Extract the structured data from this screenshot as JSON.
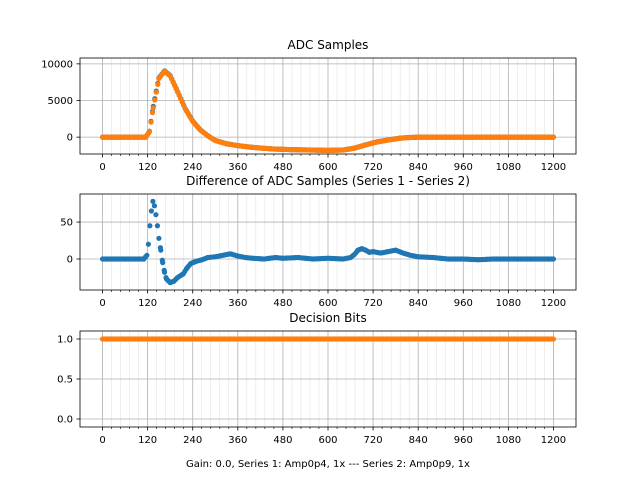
{
  "figure": {
    "xlabel": "Gain: 0.0, Series 1: Amp0p4, 1x --- Series 2: Amp0p9, 1x",
    "colors": {
      "series1": "#1f77b4",
      "series2": "#ff7f0e",
      "grid": "#b0b0b0"
    }
  },
  "chart_data": [
    {
      "type": "scatter",
      "title": "ADC Samples",
      "xlim": [
        -60,
        1260
      ],
      "ylim": [
        -2300,
        10800
      ],
      "xticks": [
        0,
        120,
        240,
        360,
        480,
        600,
        720,
        840,
        960,
        1080,
        1200
      ],
      "yticks": [
        0,
        5000,
        10000
      ],
      "ytick_labels": [
        "0",
        "5000",
        "10000"
      ],
      "grid": true,
      "series": [
        {
          "color": "#1f77b4",
          "points": [
            [
              0,
              0
            ],
            [
              100,
              0
            ],
            [
              115,
              0
            ],
            [
              125,
              800
            ],
            [
              135,
              4200
            ],
            [
              150,
              8100
            ],
            [
              165,
              9050
            ],
            [
              180,
              8400
            ],
            [
              200,
              6200
            ],
            [
              220,
              3900
            ],
            [
              240,
              2200
            ],
            [
              260,
              1000
            ],
            [
              280,
              200
            ],
            [
              300,
              -450
            ],
            [
              330,
              -900
            ],
            [
              360,
              -1150
            ],
            [
              400,
              -1400
            ],
            [
              450,
              -1600
            ],
            [
              500,
              -1700
            ],
            [
              550,
              -1750
            ],
            [
              600,
              -1800
            ],
            [
              640,
              -1750
            ],
            [
              670,
              -1500
            ],
            [
              700,
              -1050
            ],
            [
              730,
              -650
            ],
            [
              760,
              -380
            ],
            [
              790,
              -150
            ],
            [
              810,
              -60
            ],
            [
              840,
              0
            ],
            [
              900,
              0
            ],
            [
              1000,
              0
            ],
            [
              1100,
              0
            ],
            [
              1200,
              0
            ]
          ]
        },
        {
          "color": "#ff7f0e",
          "points": [
            [
              0,
              0
            ],
            [
              100,
              0
            ],
            [
              115,
              0
            ],
            [
              125,
              750
            ],
            [
              135,
              4000
            ],
            [
              150,
              8000
            ],
            [
              165,
              9000
            ],
            [
              180,
              8350
            ],
            [
              200,
              6150
            ],
            [
              220,
              3850
            ],
            [
              240,
              2150
            ],
            [
              260,
              980
            ],
            [
              280,
              190
            ],
            [
              300,
              -460
            ],
            [
              330,
              -910
            ],
            [
              360,
              -1160
            ],
            [
              400,
              -1400
            ],
            [
              450,
              -1600
            ],
            [
              500,
              -1700
            ],
            [
              550,
              -1750
            ],
            [
              600,
              -1800
            ],
            [
              640,
              -1760
            ],
            [
              670,
              -1520
            ],
            [
              700,
              -1070
            ],
            [
              730,
              -670
            ],
            [
              760,
              -400
            ],
            [
              790,
              -160
            ],
            [
              810,
              -70
            ],
            [
              840,
              0
            ],
            [
              900,
              0
            ],
            [
              1000,
              0
            ],
            [
              1100,
              0
            ],
            [
              1200,
              0
            ]
          ]
        }
      ]
    },
    {
      "type": "scatter",
      "title": "Difference of ADC Samples (Series 1 - Series 2)",
      "xlim": [
        -60,
        1260
      ],
      "ylim": [
        -42,
        88
      ],
      "xticks": [
        0,
        120,
        240,
        360,
        480,
        600,
        720,
        840,
        960,
        1080,
        1200
      ],
      "yticks": [
        0,
        50
      ],
      "ytick_labels": [
        "0",
        "50"
      ],
      "grid": true,
      "series": [
        {
          "color": "#1f77b4",
          "points": [
            [
              0,
              0
            ],
            [
              60,
              0
            ],
            [
              100,
              0
            ],
            [
              110,
              0
            ],
            [
              118,
              5
            ],
            [
              122,
              20
            ],
            [
              126,
              45
            ],
            [
              130,
              65
            ],
            [
              134,
              78
            ],
            [
              138,
              72
            ],
            [
              142,
              60
            ],
            [
              146,
              45
            ],
            [
              150,
              28
            ],
            [
              155,
              12
            ],
            [
              160,
              -5
            ],
            [
              165,
              -18
            ],
            [
              170,
              -27
            ],
            [
              180,
              -32
            ],
            [
              190,
              -30
            ],
            [
              200,
              -25
            ],
            [
              215,
              -20
            ],
            [
              225,
              -12
            ],
            [
              235,
              -6
            ],
            [
              250,
              -3
            ],
            [
              265,
              -1
            ],
            [
              280,
              2
            ],
            [
              300,
              3
            ],
            [
              320,
              5
            ],
            [
              340,
              7
            ],
            [
              360,
              4
            ],
            [
              380,
              2
            ],
            [
              400,
              1
            ],
            [
              430,
              0
            ],
            [
              460,
              2
            ],
            [
              480,
              1
            ],
            [
              520,
              2
            ],
            [
              560,
              0
            ],
            [
              600,
              1
            ],
            [
              640,
              0
            ],
            [
              660,
              2
            ],
            [
              670,
              6
            ],
            [
              680,
              12
            ],
            [
              690,
              14
            ],
            [
              700,
              12
            ],
            [
              710,
              9
            ],
            [
              720,
              10
            ],
            [
              740,
              8
            ],
            [
              760,
              10
            ],
            [
              780,
              12
            ],
            [
              800,
              8
            ],
            [
              820,
              5
            ],
            [
              840,
              3
            ],
            [
              880,
              2
            ],
            [
              920,
              0
            ],
            [
              960,
              0
            ],
            [
              1000,
              -1
            ],
            [
              1040,
              0
            ],
            [
              1080,
              0
            ],
            [
              1120,
              0
            ],
            [
              1160,
              0
            ],
            [
              1200,
              0
            ]
          ]
        }
      ]
    },
    {
      "type": "scatter",
      "title": "Decision Bits",
      "xlim": [
        -60,
        1260
      ],
      "ylim": [
        -0.1,
        1.1
      ],
      "xticks": [
        0,
        120,
        240,
        360,
        480,
        600,
        720,
        840,
        960,
        1080,
        1200
      ],
      "yticks": [
        0.0,
        0.5,
        1.0
      ],
      "ytick_labels": [
        "0.0",
        "0.5",
        "1.0"
      ],
      "grid": true,
      "series": [
        {
          "color": "#ff7f0e",
          "points": [
            [
              0,
              1
            ],
            [
              1200,
              1
            ]
          ]
        }
      ]
    }
  ]
}
